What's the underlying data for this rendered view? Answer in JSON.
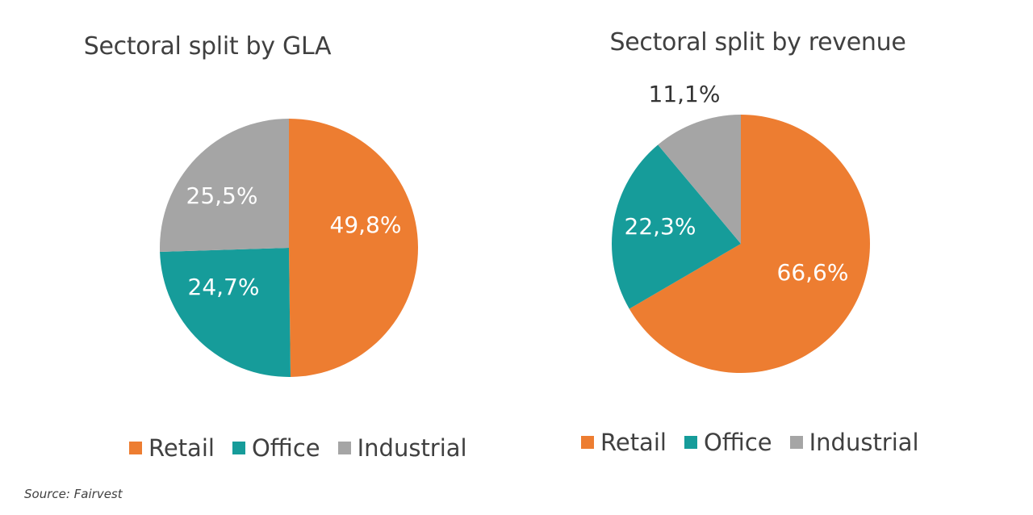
{
  "colors": {
    "retail": "#ED7D31",
    "office": "#169C9A",
    "industrial": "#A5A5A5",
    "label_light": "#ffffff",
    "label_dark": "#333333"
  },
  "chart_data": [
    {
      "type": "pie",
      "title": "Sectoral split by GLA",
      "labels": [
        "Retail",
        "Office",
        "Industrial"
      ],
      "values": [
        49.8,
        24.7,
        25.5
      ],
      "value_labels": [
        "49,8%",
        "24,7%",
        "25,5%"
      ],
      "legend": "bottom"
    },
    {
      "type": "pie",
      "title": "Sectoral split by revenue",
      "labels": [
        "Retail",
        "Office",
        "Industrial"
      ],
      "values": [
        66.6,
        22.3,
        11.1
      ],
      "value_labels": [
        "66,6%",
        "22,3%",
        "11,1%"
      ],
      "legend": "bottom"
    }
  ],
  "legend_labels": [
    "Retail",
    "Office",
    "Industrial"
  ],
  "source": "Source: Fairvest"
}
